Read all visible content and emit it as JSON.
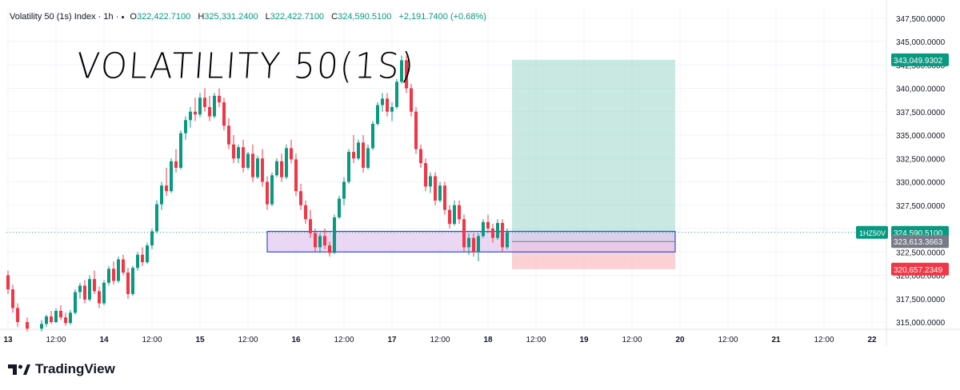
{
  "header": {
    "symbol_title": "Volatility 50 (1s) Index · 1h ·",
    "open_label": "O",
    "open": "322,422.7100",
    "high_label": "H",
    "high": "325,331.2400",
    "low_label": "L",
    "low": "322,422.7100",
    "close_label": "C",
    "close": "324,590.5100",
    "change": "+2,191.7400 (+0.68%)"
  },
  "annotation": "VOLATILITY 50(1S)",
  "branding": {
    "logo_text": "TradingView"
  },
  "colors": {
    "up": "#089981",
    "down": "#f23645",
    "target_zone": "#9fd6cb",
    "stop_zone": "#f9c1c4",
    "box_fill": "#e1c6ee",
    "box_stroke": "#2f4fdc"
  },
  "chart_data": {
    "type": "candlestick",
    "y_ticks": [
      "315,000.0000",
      "317,500.0000",
      "320,000.0000",
      "322,500.0000",
      "325,000.0000",
      "327,500.0000",
      "330,000.0000",
      "332,500.0000",
      "335,000.0000",
      "337,500.0000",
      "340,000.0000",
      "342,500.0000",
      "345,000.0000",
      "347,500.0000"
    ],
    "x_ticks": [
      "13",
      "12:00",
      "14",
      "12:00",
      "15",
      "12:00",
      "16",
      "12:00",
      "17",
      "12:00",
      "18",
      "12:00",
      "19",
      "12:00",
      "20",
      "12:00",
      "21",
      "12:00",
      "22"
    ],
    "ylim": [
      314000,
      348000
    ],
    "grid": true,
    "price_labels": {
      "symbol": "1HZ50V",
      "current": "324,590.5100",
      "target": "343,049.9302",
      "entry": "323,613.3663",
      "stop": "320,657.2349"
    },
    "long_position": {
      "entry": 323613.3663,
      "target": 343049.9302,
      "stop": 320657.2349,
      "start_day": 18.25,
      "end_day": 19.95
    },
    "zone_box": {
      "top": 324700,
      "bottom": 322500,
      "start_day": 15.7,
      "end_day": 19.95
    },
    "candles": [
      {
        "t": 13.0,
        "o": 320000,
        "h": 320500,
        "l": 318000,
        "c": 318500
      },
      {
        "t": 13.05,
        "o": 318500,
        "h": 319000,
        "l": 316000,
        "c": 316500
      },
      {
        "t": 13.1,
        "o": 316500,
        "h": 317000,
        "l": 314500,
        "c": 315000
      },
      {
        "t": 13.2,
        "o": 315000,
        "h": 315500,
        "l": 314000,
        "c": 314300
      },
      {
        "t": 13.35,
        "o": 314300,
        "h": 315200,
        "l": 314000,
        "c": 314800
      },
      {
        "t": 13.4,
        "o": 314800,
        "h": 315800,
        "l": 314500,
        "c": 315600
      },
      {
        "t": 13.45,
        "o": 315600,
        "h": 316200,
        "l": 314800,
        "c": 315000
      },
      {
        "t": 13.5,
        "o": 315000,
        "h": 316500,
        "l": 314900,
        "c": 316200
      },
      {
        "t": 13.55,
        "o": 316200,
        "h": 316800,
        "l": 315200,
        "c": 315500
      },
      {
        "t": 13.6,
        "o": 315500,
        "h": 316000,
        "l": 314600,
        "c": 314900
      },
      {
        "t": 13.65,
        "o": 314900,
        "h": 316300,
        "l": 314700,
        "c": 316000
      },
      {
        "t": 13.7,
        "o": 316000,
        "h": 318500,
        "l": 315800,
        "c": 318200
      },
      {
        "t": 13.75,
        "o": 318200,
        "h": 319200,
        "l": 317500,
        "c": 318900
      },
      {
        "t": 13.8,
        "o": 318900,
        "h": 319500,
        "l": 317000,
        "c": 317400
      },
      {
        "t": 13.85,
        "o": 317400,
        "h": 320000,
        "l": 317200,
        "c": 319600
      },
      {
        "t": 13.9,
        "o": 319600,
        "h": 320500,
        "l": 318000,
        "c": 318300
      },
      {
        "t": 13.95,
        "o": 318300,
        "h": 318800,
        "l": 316500,
        "c": 317000
      },
      {
        "t": 14.0,
        "o": 317000,
        "h": 319500,
        "l": 316800,
        "c": 319200
      },
      {
        "t": 14.05,
        "o": 319200,
        "h": 321000,
        "l": 318900,
        "c": 320700
      },
      {
        "t": 14.1,
        "o": 320700,
        "h": 321500,
        "l": 319000,
        "c": 319400
      },
      {
        "t": 14.15,
        "o": 319400,
        "h": 322000,
        "l": 319200,
        "c": 321700
      },
      {
        "t": 14.2,
        "o": 321700,
        "h": 322200,
        "l": 320000,
        "c": 320300
      },
      {
        "t": 14.25,
        "o": 320300,
        "h": 320800,
        "l": 317500,
        "c": 318000
      },
      {
        "t": 14.3,
        "o": 318000,
        "h": 321000,
        "l": 317800,
        "c": 320800
      },
      {
        "t": 14.35,
        "o": 320800,
        "h": 322500,
        "l": 320500,
        "c": 322200
      },
      {
        "t": 14.4,
        "o": 322200,
        "h": 323000,
        "l": 321000,
        "c": 321400
      },
      {
        "t": 14.45,
        "o": 321400,
        "h": 323500,
        "l": 321200,
        "c": 323200
      },
      {
        "t": 14.5,
        "o": 323200,
        "h": 325000,
        "l": 322800,
        "c": 324700
      },
      {
        "t": 14.55,
        "o": 324700,
        "h": 328000,
        "l": 324500,
        "c": 327600
      },
      {
        "t": 14.6,
        "o": 327600,
        "h": 330000,
        "l": 327000,
        "c": 329600
      },
      {
        "t": 14.65,
        "o": 329600,
        "h": 331500,
        "l": 328500,
        "c": 329000
      },
      {
        "t": 14.7,
        "o": 329000,
        "h": 332500,
        "l": 328800,
        "c": 332200
      },
      {
        "t": 14.75,
        "o": 332200,
        "h": 333500,
        "l": 331000,
        "c": 331500
      },
      {
        "t": 14.8,
        "o": 331500,
        "h": 335500,
        "l": 331300,
        "c": 335200
      },
      {
        "t": 14.85,
        "o": 335200,
        "h": 337000,
        "l": 334500,
        "c": 336600
      },
      {
        "t": 14.9,
        "o": 336600,
        "h": 338000,
        "l": 335800,
        "c": 337500
      },
      {
        "t": 14.95,
        "o": 337500,
        "h": 339000,
        "l": 336500,
        "c": 337200
      },
      {
        "t": 15.0,
        "o": 337200,
        "h": 339500,
        "l": 336900,
        "c": 339000
      },
      {
        "t": 15.05,
        "o": 339000,
        "h": 340000,
        "l": 337500,
        "c": 338000
      },
      {
        "t": 15.1,
        "o": 338000,
        "h": 339200,
        "l": 336500,
        "c": 337000
      },
      {
        "t": 15.15,
        "o": 337000,
        "h": 339500,
        "l": 336800,
        "c": 339200
      },
      {
        "t": 15.2,
        "o": 339200,
        "h": 340000,
        "l": 338000,
        "c": 338500
      },
      {
        "t": 15.25,
        "o": 338500,
        "h": 339000,
        "l": 335500,
        "c": 336000
      },
      {
        "t": 15.3,
        "o": 336000,
        "h": 336800,
        "l": 333500,
        "c": 334000
      },
      {
        "t": 15.35,
        "o": 334000,
        "h": 335000,
        "l": 332000,
        "c": 332500
      },
      {
        "t": 15.4,
        "o": 332500,
        "h": 334000,
        "l": 332000,
        "c": 333700
      },
      {
        "t": 15.45,
        "o": 333700,
        "h": 334500,
        "l": 331000,
        "c": 331500
      },
      {
        "t": 15.5,
        "o": 331500,
        "h": 333200,
        "l": 331300,
        "c": 333000
      },
      {
        "t": 15.55,
        "o": 333000,
        "h": 334000,
        "l": 330000,
        "c": 330500
      },
      {
        "t": 15.6,
        "o": 330500,
        "h": 332800,
        "l": 330300,
        "c": 332500
      },
      {
        "t": 15.65,
        "o": 332500,
        "h": 333500,
        "l": 329500,
        "c": 330000
      },
      {
        "t": 15.7,
        "o": 330000,
        "h": 330600,
        "l": 327000,
        "c": 327600
      },
      {
        "t": 15.75,
        "o": 327600,
        "h": 331000,
        "l": 327400,
        "c": 330700
      },
      {
        "t": 15.8,
        "o": 330700,
        "h": 332500,
        "l": 330500,
        "c": 332200
      },
      {
        "t": 15.85,
        "o": 332200,
        "h": 333000,
        "l": 330000,
        "c": 330500
      },
      {
        "t": 15.9,
        "o": 330500,
        "h": 334000,
        "l": 330300,
        "c": 333600
      },
      {
        "t": 15.95,
        "o": 333600,
        "h": 334500,
        "l": 332000,
        "c": 332400
      },
      {
        "t": 16.0,
        "o": 332400,
        "h": 333000,
        "l": 328500,
        "c": 329000
      },
      {
        "t": 16.05,
        "o": 329000,
        "h": 329800,
        "l": 327000,
        "c": 327500
      },
      {
        "t": 16.1,
        "o": 327500,
        "h": 328000,
        "l": 325500,
        "c": 326000
      },
      {
        "t": 16.15,
        "o": 326000,
        "h": 327000,
        "l": 324000,
        "c": 324500
      },
      {
        "t": 16.2,
        "o": 324500,
        "h": 325000,
        "l": 322500,
        "c": 323000
      },
      {
        "t": 16.25,
        "o": 323000,
        "h": 324500,
        "l": 322400,
        "c": 324200
      },
      {
        "t": 16.3,
        "o": 324200,
        "h": 325000,
        "l": 322800,
        "c": 323200
      },
      {
        "t": 16.35,
        "o": 323200,
        "h": 323600,
        "l": 322000,
        "c": 322400
      },
      {
        "t": 16.4,
        "o": 322400,
        "h": 326500,
        "l": 322300,
        "c": 326200
      },
      {
        "t": 16.45,
        "o": 326200,
        "h": 328500,
        "l": 326000,
        "c": 328200
      },
      {
        "t": 16.5,
        "o": 328200,
        "h": 330500,
        "l": 327500,
        "c": 330000
      },
      {
        "t": 16.55,
        "o": 330000,
        "h": 333500,
        "l": 329800,
        "c": 333200
      },
      {
        "t": 16.6,
        "o": 333200,
        "h": 335000,
        "l": 332000,
        "c": 332500
      },
      {
        "t": 16.65,
        "o": 332500,
        "h": 334500,
        "l": 332300,
        "c": 334200
      },
      {
        "t": 16.7,
        "o": 334200,
        "h": 335000,
        "l": 331000,
        "c": 331500
      },
      {
        "t": 16.75,
        "o": 331500,
        "h": 334000,
        "l": 331300,
        "c": 333600
      },
      {
        "t": 16.8,
        "o": 333600,
        "h": 336500,
        "l": 333400,
        "c": 336200
      },
      {
        "t": 16.85,
        "o": 336200,
        "h": 338500,
        "l": 336000,
        "c": 338200
      },
      {
        "t": 16.9,
        "o": 338200,
        "h": 339500,
        "l": 337500,
        "c": 338900
      },
      {
        "t": 16.95,
        "o": 338900,
        "h": 339500,
        "l": 337000,
        "c": 337500
      },
      {
        "t": 17.0,
        "o": 337500,
        "h": 338500,
        "l": 336500,
        "c": 338000
      },
      {
        "t": 17.05,
        "o": 338000,
        "h": 341000,
        "l": 337800,
        "c": 340700
      },
      {
        "t": 17.1,
        "o": 340700,
        "h": 343500,
        "l": 340500,
        "c": 343000
      },
      {
        "t": 17.15,
        "o": 343000,
        "h": 343500,
        "l": 339500,
        "c": 340000
      },
      {
        "t": 17.2,
        "o": 340000,
        "h": 340500,
        "l": 337000,
        "c": 337500
      },
      {
        "t": 17.25,
        "o": 337500,
        "h": 338000,
        "l": 333000,
        "c": 333500
      },
      {
        "t": 17.3,
        "o": 333500,
        "h": 334000,
        "l": 331500,
        "c": 332000
      },
      {
        "t": 17.35,
        "o": 332000,
        "h": 332500,
        "l": 329000,
        "c": 329500
      },
      {
        "t": 17.4,
        "o": 329500,
        "h": 331000,
        "l": 328800,
        "c": 330600
      },
      {
        "t": 17.45,
        "o": 330600,
        "h": 331000,
        "l": 327500,
        "c": 328000
      },
      {
        "t": 17.5,
        "o": 328000,
        "h": 330000,
        "l": 327800,
        "c": 329600
      },
      {
        "t": 17.55,
        "o": 329600,
        "h": 330000,
        "l": 326500,
        "c": 327000
      },
      {
        "t": 17.6,
        "o": 327000,
        "h": 327500,
        "l": 325000,
        "c": 325500
      },
      {
        "t": 17.65,
        "o": 325500,
        "h": 328000,
        "l": 325300,
        "c": 327500
      },
      {
        "t": 17.7,
        "o": 327500,
        "h": 328000,
        "l": 325500,
        "c": 326000
      },
      {
        "t": 17.75,
        "o": 326000,
        "h": 326500,
        "l": 322500,
        "c": 323000
      },
      {
        "t": 17.8,
        "o": 323000,
        "h": 324500,
        "l": 322200,
        "c": 324000
      },
      {
        "t": 17.85,
        "o": 324000,
        "h": 324500,
        "l": 322000,
        "c": 322500
      },
      {
        "t": 17.9,
        "o": 322500,
        "h": 324500,
        "l": 321500,
        "c": 324200
      },
      {
        "t": 17.95,
        "o": 324200,
        "h": 326000,
        "l": 324000,
        "c": 325700
      },
      {
        "t": 18.0,
        "o": 325700,
        "h": 326500,
        "l": 324500,
        "c": 325000
      },
      {
        "t": 18.05,
        "o": 325000,
        "h": 325500,
        "l": 323500,
        "c": 324000
      },
      {
        "t": 18.1,
        "o": 324000,
        "h": 326000,
        "l": 323800,
        "c": 325600
      },
      {
        "t": 18.15,
        "o": 325600,
        "h": 326000,
        "l": 322500,
        "c": 323000
      },
      {
        "t": 18.2,
        "o": 323000,
        "h": 325000,
        "l": 322800,
        "c": 324600
      }
    ]
  }
}
